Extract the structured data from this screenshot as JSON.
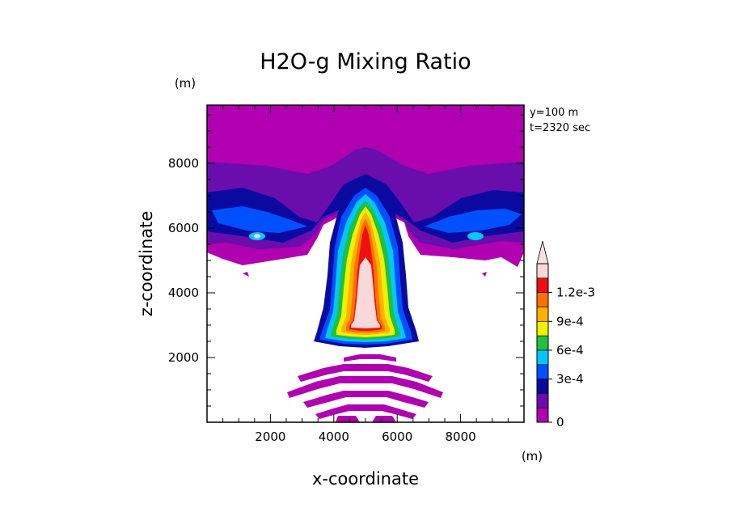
{
  "chart_data": {
    "type": "heatmap",
    "title": "H2O-g Mixing Ratio",
    "xlabel": "x-coordinate",
    "ylabel": "z-coordinate",
    "x_unit": "(m)",
    "y_unit": "(m)",
    "annotations": [
      "y=100 m",
      "t=2320 sec"
    ],
    "xlim": [
      0,
      10000
    ],
    "ylim": [
      0,
      9800
    ],
    "x_ticks": [
      2000,
      4000,
      6000,
      8000
    ],
    "y_ticks": [
      2000,
      4000,
      6000,
      8000
    ],
    "colorbar": {
      "levels": [
        0,
        0.00015,
        0.0003,
        0.00045,
        0.0006,
        0.00075,
        0.0009,
        0.00105,
        0.0012
      ],
      "labels": [
        "0",
        "3e-4",
        "6e-4",
        "9e-4",
        "1.2e-3"
      ],
      "label_values": [
        0,
        0.0003,
        0.0006,
        0.0009,
        0.0012
      ],
      "colors": [
        "#b000b0",
        "#6a0dad",
        "#0a0aa0",
        "#0050ff",
        "#00c8ff",
        "#20c040",
        "#f0f000",
        "#ffb000",
        "#ff7000",
        "#ee1010",
        "#f8d8d8"
      ],
      "extend": "max"
    }
  },
  "colors": {
    "background": "#ffffff",
    "axis": "#000000"
  }
}
